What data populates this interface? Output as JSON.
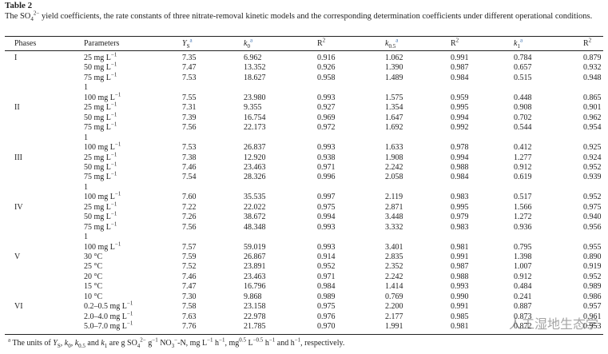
{
  "title": "Table 2",
  "caption": [
    {
      "text": "The SO"
    },
    {
      "text": "4",
      "style": "sub"
    },
    {
      "text": "2−",
      "style": "sup"
    },
    {
      "text": " yield coefficients, the rate constants of three nitrate-removal kinetic models and the corresponding determination coefficients under different operational conditions."
    }
  ],
  "table": {
    "header": [
      [
        {
          "text": "Phases"
        }
      ],
      [
        {
          "text": "Parameters"
        }
      ],
      [
        {
          "text": "Y",
          "style": "italic"
        },
        {
          "text": "S",
          "style": "sub"
        },
        {
          "text": "a",
          "style": "note"
        }
      ],
      [
        {
          "text": "k",
          "style": "italic"
        },
        {
          "text": "0",
          "style": "sub"
        },
        {
          "text": "a",
          "style": "note"
        }
      ],
      [
        {
          "text": "R"
        },
        {
          "text": "2",
          "style": "sup"
        }
      ],
      [
        {
          "text": "k",
          "style": "italic"
        },
        {
          "text": "0.5",
          "style": "sub"
        },
        {
          "text": "a",
          "style": "note"
        }
      ],
      [
        {
          "text": "R"
        },
        {
          "text": "2",
          "style": "sup"
        }
      ],
      [
        {
          "text": "k",
          "style": "italic"
        },
        {
          "text": "1",
          "style": "sub"
        },
        {
          "text": "a",
          "style": "note"
        }
      ],
      [
        {
          "text": "R"
        },
        {
          "text": "2",
          "style": "sup"
        }
      ]
    ],
    "rows": [
      {
        "phase": "I",
        "parameter": [
          {
            "text": "25 mg L"
          },
          {
            "text": "−1",
            "style": "sup"
          }
        ],
        "values": [
          "7.35",
          "6.962",
          "0.916",
          "1.062",
          "0.991",
          "0.784",
          "0.879"
        ]
      },
      {
        "parameter": [
          {
            "text": "50 mg L"
          },
          {
            "text": "−1",
            "style": "sup"
          }
        ],
        "values": [
          "7.47",
          "13.352",
          "0.926",
          "1.390",
          "0.987",
          "0.657",
          "0.932"
        ]
      },
      {
        "parameter": [
          {
            "text": "75 mg L"
          },
          {
            "text": "−1",
            "style": "sup"
          }
        ],
        "values": [
          "7.53",
          "18.627",
          "0.958",
          "1.489",
          "0.984",
          "0.515",
          "0.948"
        ]
      },
      {
        "wrap": "1",
        "parameter": [
          {
            "text": "100 mg L"
          },
          {
            "text": "−1",
            "style": "sup"
          }
        ],
        "values": [
          "7.55",
          "23.980",
          "0.993",
          "1.575",
          "0.959",
          "0.448",
          "0.865"
        ]
      },
      {
        "phase": "II",
        "parameter": [
          {
            "text": "25 mg L"
          },
          {
            "text": "−1",
            "style": "sup"
          }
        ],
        "values": [
          "7.31",
          "9.355",
          "0.927",
          "1.354",
          "0.995",
          "0.908",
          "0.901"
        ]
      },
      {
        "parameter": [
          {
            "text": "50 mg L"
          },
          {
            "text": "−1",
            "style": "sup"
          }
        ],
        "values": [
          "7.39",
          "16.754",
          "0.969",
          "1.647",
          "0.994",
          "0.702",
          "0.962"
        ]
      },
      {
        "parameter": [
          {
            "text": "75 mg L"
          },
          {
            "text": "−1",
            "style": "sup"
          }
        ],
        "values": [
          "7.56",
          "22.173",
          "0.972",
          "1.692",
          "0.992",
          "0.544",
          "0.954"
        ]
      },
      {
        "wrap": "1",
        "parameter": [
          {
            "text": "100 mg L"
          },
          {
            "text": "−1",
            "style": "sup"
          }
        ],
        "values": [
          "7.53",
          "26.837",
          "0.993",
          "1.633",
          "0.978",
          "0.412",
          "0.925"
        ]
      },
      {
        "phase": "III",
        "parameter": [
          {
            "text": "25 mg L"
          },
          {
            "text": "−1",
            "style": "sup"
          }
        ],
        "values": [
          "7.38",
          "12.920",
          "0.938",
          "1.908",
          "0.994",
          "1.277",
          "0.924"
        ]
      },
      {
        "parameter": [
          {
            "text": "50 mg L"
          },
          {
            "text": "−1",
            "style": "sup"
          }
        ],
        "values": [
          "7.46",
          "23.463",
          "0.971",
          "2.242",
          "0.988",
          "0.912",
          "0.952"
        ]
      },
      {
        "parameter": [
          {
            "text": "75 mg L"
          },
          {
            "text": "−1",
            "style": "sup"
          }
        ],
        "values": [
          "7.54",
          "28.326",
          "0.996",
          "2.058",
          "0.984",
          "0.619",
          "0.939"
        ]
      },
      {
        "wrap": "1",
        "parameter": [
          {
            "text": "100 mg L"
          },
          {
            "text": "−1",
            "style": "sup"
          }
        ],
        "values": [
          "7.60",
          "35.535",
          "0.997",
          "2.119",
          "0.983",
          "0.517",
          "0.952"
        ]
      },
      {
        "phase": "IV",
        "parameter": [
          {
            "text": "25 mg L"
          },
          {
            "text": "−1",
            "style": "sup"
          }
        ],
        "values": [
          "7.22",
          "22.022",
          "0.975",
          "2.871",
          "0.995",
          "1.566",
          "0.975"
        ]
      },
      {
        "parameter": [
          {
            "text": "50 mg L"
          },
          {
            "text": "−1",
            "style": "sup"
          }
        ],
        "values": [
          "7.26",
          "38.672",
          "0.994",
          "3.448",
          "0.979",
          "1.272",
          "0.940"
        ]
      },
      {
        "parameter": [
          {
            "text": "75 mg L"
          },
          {
            "text": "−1",
            "style": "sup"
          }
        ],
        "values": [
          "7.56",
          "48.348",
          "0.993",
          "3.332",
          "0.983",
          "0.936",
          "0.956"
        ]
      },
      {
        "wrap": "1",
        "parameter": [
          {
            "text": "100 mg L"
          },
          {
            "text": "−1",
            "style": "sup"
          }
        ],
        "values": [
          "7.57",
          "59.019",
          "0.993",
          "3.401",
          "0.981",
          "0.795",
          "0.955"
        ]
      },
      {
        "phase": "V",
        "parameter": [
          {
            "text": "30 °C"
          }
        ],
        "values": [
          "7.59",
          "26.867",
          "0.914",
          "2.835",
          "0.991",
          "1.398",
          "0.890"
        ]
      },
      {
        "parameter": [
          {
            "text": "25 °C"
          }
        ],
        "values": [
          "7.52",
          "23.891",
          "0.952",
          "2.352",
          "0.987",
          "1.007",
          "0.919"
        ]
      },
      {
        "parameter": [
          {
            "text": "20 °C"
          }
        ],
        "values": [
          "7.46",
          "23.463",
          "0.971",
          "2.242",
          "0.988",
          "0.912",
          "0.952"
        ]
      },
      {
        "parameter": [
          {
            "text": "15 °C"
          }
        ],
        "values": [
          "7.47",
          "16.796",
          "0.984",
          "1.414",
          "0.993",
          "0.484",
          "0.989"
        ]
      },
      {
        "parameter": [
          {
            "text": "10 °C"
          }
        ],
        "values": [
          "7.30",
          "9.868",
          "0.989",
          "0.769",
          "0.990",
          "0.241",
          "0.986"
        ]
      },
      {
        "phase": "VI",
        "parameter": [
          {
            "text": "0.2–0.5 mg L"
          },
          {
            "text": "−1",
            "style": "sup"
          }
        ],
        "values": [
          "7.58",
          "23.158",
          "0.975",
          "2.200",
          "0.991",
          "0.887",
          "0.957"
        ]
      },
      {
        "parameter": [
          {
            "text": "2.0–4.0 mg L"
          },
          {
            "text": "−1",
            "style": "sup"
          }
        ],
        "values": [
          "7.63",
          "22.978",
          "0.976",
          "2.177",
          "0.985",
          "0.873",
          "0.961"
        ]
      },
      {
        "parameter": [
          {
            "text": "5.0–7.0 mg L"
          },
          {
            "text": "−1",
            "style": "sup"
          }
        ],
        "values": [
          "7.76",
          "21.785",
          "0.970",
          "1.991",
          "0.981",
          "0.872",
          "0.953"
        ]
      }
    ]
  },
  "footnote": [
    {
      "text": "a",
      "style": "sup"
    },
    {
      "text": " The units of "
    },
    {
      "text": "Y",
      "style": "italic"
    },
    {
      "text": "S",
      "style": "sub"
    },
    {
      "text": ", "
    },
    {
      "text": "k",
      "style": "italic"
    },
    {
      "text": "0",
      "style": "sub"
    },
    {
      "text": ", "
    },
    {
      "text": "k",
      "style": "italic"
    },
    {
      "text": "0.5",
      "style": "sub"
    },
    {
      "text": " and "
    },
    {
      "text": "k",
      "style": "italic"
    },
    {
      "text": "1",
      "style": "sub"
    },
    {
      "text": " are g SO"
    },
    {
      "text": "4",
      "style": "sub"
    },
    {
      "text": "2−",
      "style": "sup"
    },
    {
      "text": " g"
    },
    {
      "text": "−1",
      "style": "sup"
    },
    {
      "text": " NO"
    },
    {
      "text": "3",
      "style": "sub"
    },
    {
      "text": "−",
      "style": "sup"
    },
    {
      "text": "-N, mg L"
    },
    {
      "text": "−1",
      "style": "sup"
    },
    {
      "text": " h"
    },
    {
      "text": "−1",
      "style": "sup"
    },
    {
      "text": ", mg"
    },
    {
      "text": "0.5",
      "style": "sup"
    },
    {
      "text": " L"
    },
    {
      "text": "−0.5",
      "style": "sup"
    },
    {
      "text": " h"
    },
    {
      "text": "−1",
      "style": "sup"
    },
    {
      "text": " and h"
    },
    {
      "text": "−1",
      "style": "sup"
    },
    {
      "text": ", respectively."
    }
  ],
  "watermark": "人工湿地生态学"
}
